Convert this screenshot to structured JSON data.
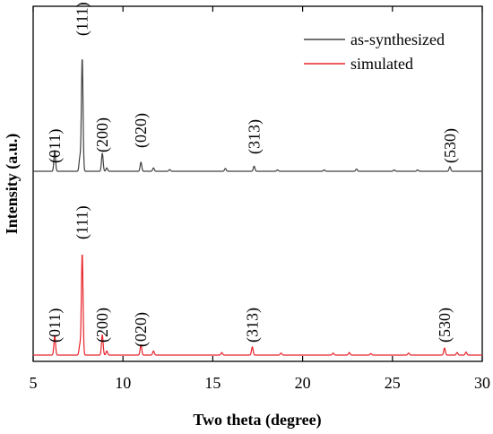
{
  "chart_data": {
    "type": "line",
    "xlabel": "Two theta (degree)",
    "ylabel": "Intensity (a.u.)",
    "xlim": [
      5,
      30
    ],
    "xticks": [
      5,
      10,
      15,
      20,
      25,
      30
    ],
    "y_axis_tick_labels": false,
    "legend": {
      "placement": "top-right",
      "entries": [
        {
          "label": "as-synthesized",
          "color": "#404040"
        },
        {
          "label": "simulated",
          "color": "#e8232a"
        }
      ]
    },
    "series": [
      {
        "name": "as-synthesized",
        "color": "#404040",
        "baseline": 0.0,
        "peaks": [
          {
            "x": 6.2,
            "height": 0.18
          },
          {
            "x": 7.6,
            "height": 0.12
          },
          {
            "x": 7.73,
            "height": 1.0
          },
          {
            "x": 8.85,
            "height": 0.16
          },
          {
            "x": 9.1,
            "height": 0.03
          },
          {
            "x": 11.0,
            "height": 0.08
          },
          {
            "x": 11.7,
            "height": 0.03
          },
          {
            "x": 12.6,
            "height": 0.015
          },
          {
            "x": 15.7,
            "height": 0.025
          },
          {
            "x": 17.3,
            "height": 0.045
          },
          {
            "x": 18.6,
            "height": 0.012
          },
          {
            "x": 21.2,
            "height": 0.012
          },
          {
            "x": 23.0,
            "height": 0.02
          },
          {
            "x": 25.1,
            "height": 0.012
          },
          {
            "x": 26.4,
            "height": 0.012
          },
          {
            "x": 28.2,
            "height": 0.04
          }
        ],
        "annotations": [
          {
            "label": "(011)",
            "x": 6.2
          },
          {
            "label": "(111)",
            "x": 7.73
          },
          {
            "label": "(200)",
            "x": 8.85
          },
          {
            "label": "(020)",
            "x": 11.0
          },
          {
            "label": "(313)",
            "x": 17.3
          },
          {
            "label": "(530)",
            "x": 28.2
          }
        ]
      },
      {
        "name": "simulated",
        "color": "#e8232a",
        "baseline": 0.0,
        "peaks": [
          {
            "x": 6.2,
            "height": 0.19
          },
          {
            "x": 7.6,
            "height": 0.1
          },
          {
            "x": 7.73,
            "height": 1.0
          },
          {
            "x": 8.85,
            "height": 0.2
          },
          {
            "x": 9.1,
            "height": 0.04
          },
          {
            "x": 11.0,
            "height": 0.1
          },
          {
            "x": 11.7,
            "height": 0.04
          },
          {
            "x": 15.5,
            "height": 0.025
          },
          {
            "x": 17.2,
            "height": 0.08
          },
          {
            "x": 18.8,
            "height": 0.02
          },
          {
            "x": 21.7,
            "height": 0.02
          },
          {
            "x": 22.6,
            "height": 0.025
          },
          {
            "x": 23.8,
            "height": 0.015
          },
          {
            "x": 25.9,
            "height": 0.02
          },
          {
            "x": 27.9,
            "height": 0.07
          },
          {
            "x": 28.6,
            "height": 0.025
          },
          {
            "x": 29.1,
            "height": 0.03
          }
        ],
        "annotations": [
          {
            "label": "(011)",
            "x": 6.2
          },
          {
            "label": "(111)",
            "x": 7.73
          },
          {
            "label": "(200)",
            "x": 8.85
          },
          {
            "label": "(020)",
            "x": 11.0
          },
          {
            "label": "(313)",
            "x": 17.2
          },
          {
            "label": "(530)",
            "x": 27.9
          }
        ]
      }
    ]
  }
}
